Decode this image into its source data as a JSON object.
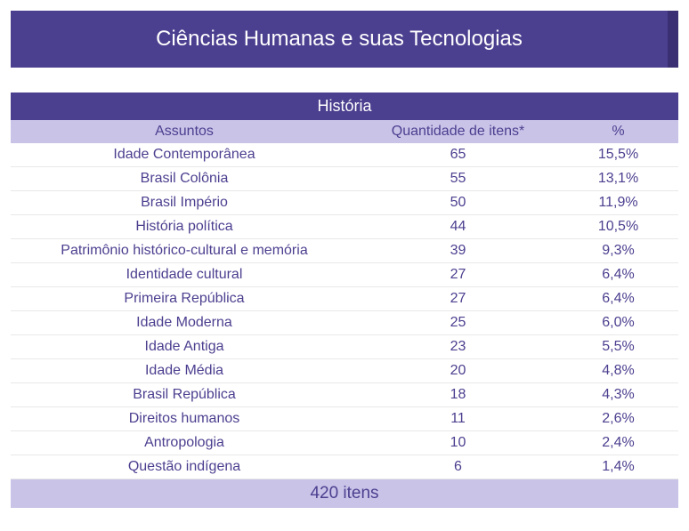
{
  "banner": {
    "title": "Ciências Humanas e suas Tecnologias",
    "bg_color": "#4b3f8f",
    "accent_color": "#3a2f72",
    "text_color": "#ffffff",
    "title_fontsize": 24
  },
  "table": {
    "title": "História",
    "title_bg": "#4b3f8f",
    "title_color": "#ffffff",
    "header_bg": "#c9c3e8",
    "header_color": "#4b3f8f",
    "row_text_color": "#4b3f8f",
    "row_border_color": "#e8e8e8",
    "footer_bg": "#c9c3e8",
    "footer_color": "#4b3f8f",
    "columns": {
      "subject": "Assuntos",
      "quantity": "Quantidade de itens*",
      "percent": "%"
    },
    "rows": [
      {
        "subject": "Idade Contemporânea",
        "quantity": "65",
        "percent": "15,5%"
      },
      {
        "subject": "Brasil Colônia",
        "quantity": "55",
        "percent": "13,1%"
      },
      {
        "subject": "Brasil Império",
        "quantity": "50",
        "percent": "11,9%"
      },
      {
        "subject": "História política",
        "quantity": "44",
        "percent": "10,5%"
      },
      {
        "subject": "Patrimônio histórico-cultural e memória",
        "quantity": "39",
        "percent": "9,3%"
      },
      {
        "subject": "Identidade cultural",
        "quantity": "27",
        "percent": "6,4%"
      },
      {
        "subject": "Primeira República",
        "quantity": "27",
        "percent": "6,4%"
      },
      {
        "subject": "Idade Moderna",
        "quantity": "25",
        "percent": "6,0%"
      },
      {
        "subject": "Idade Antiga",
        "quantity": "23",
        "percent": "5,5%"
      },
      {
        "subject": "Idade Média",
        "quantity": "20",
        "percent": "4,8%"
      },
      {
        "subject": "Brasil República",
        "quantity": "18",
        "percent": "4,3%"
      },
      {
        "subject": "Direitos humanos",
        "quantity": "11",
        "percent": "2,6%"
      },
      {
        "subject": "Antropologia",
        "quantity": "10",
        "percent": "2,4%"
      },
      {
        "subject": "Questão indígena",
        "quantity": "6",
        "percent": "1,4%"
      }
    ],
    "footer": "420 itens"
  }
}
